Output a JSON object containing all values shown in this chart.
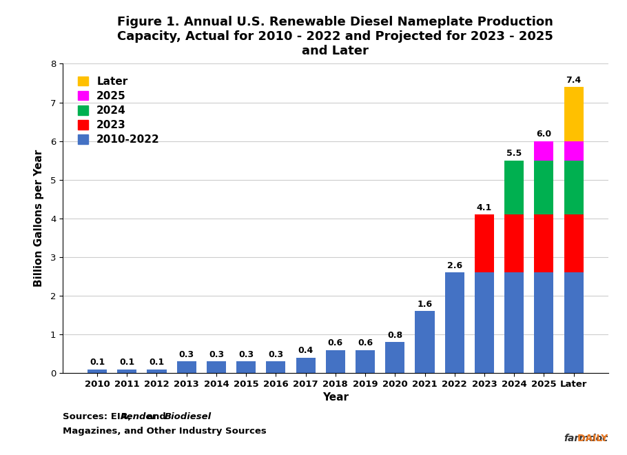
{
  "categories": [
    "2010",
    "2011",
    "2012",
    "2013",
    "2014",
    "2015",
    "2016",
    "2017",
    "2018",
    "2019",
    "2020",
    "2021",
    "2022",
    "2023",
    "2024",
    "2025",
    "Later"
  ],
  "base_2010_2022": [
    0.1,
    0.1,
    0.1,
    0.3,
    0.3,
    0.3,
    0.3,
    0.4,
    0.6,
    0.6,
    0.8,
    1.6,
    2.6,
    2.6,
    2.6,
    2.6,
    2.6
  ],
  "seg_2023": [
    0.0,
    0.0,
    0.0,
    0.0,
    0.0,
    0.0,
    0.0,
    0.0,
    0.0,
    0.0,
    0.0,
    0.0,
    0.0,
    1.5,
    1.5,
    1.5,
    1.5
  ],
  "seg_2024": [
    0.0,
    0.0,
    0.0,
    0.0,
    0.0,
    0.0,
    0.0,
    0.0,
    0.0,
    0.0,
    0.0,
    0.0,
    0.0,
    0.0,
    1.4,
    1.4,
    1.4
  ],
  "seg_2025": [
    0.0,
    0.0,
    0.0,
    0.0,
    0.0,
    0.0,
    0.0,
    0.0,
    0.0,
    0.0,
    0.0,
    0.0,
    0.0,
    0.0,
    0.0,
    0.5,
    0.5
  ],
  "seg_later": [
    0.0,
    0.0,
    0.0,
    0.0,
    0.0,
    0.0,
    0.0,
    0.0,
    0.0,
    0.0,
    0.0,
    0.0,
    0.0,
    0.0,
    0.0,
    0.0,
    1.4
  ],
  "totals": [
    0.1,
    0.1,
    0.1,
    0.3,
    0.3,
    0.3,
    0.3,
    0.4,
    0.6,
    0.6,
    0.8,
    1.6,
    2.6,
    4.1,
    5.5,
    6.0,
    7.4
  ],
  "color_base": "#4472C4",
  "color_2023": "#FF0000",
  "color_2024": "#00B050",
  "color_2025": "#FF00FF",
  "color_later": "#FFC000",
  "ylabel": "Billion Gallons per Year",
  "xlabel": "Year",
  "title": "Figure 1. Annual U.S. Renewable Diesel Nameplate Production\nCapacity, Actual for 2010 - 2022 and Projected for 2023 - 2025\nand Later",
  "ylim": [
    0,
    8
  ],
  "yticks": [
    0,
    1,
    2,
    3,
    4,
    5,
    6,
    7,
    8
  ],
  "watermark": "farmdocDAILY",
  "watermark_color_farm": "#333333",
  "watermark_color_daily": "#E87722",
  "legend_labels": [
    "Later",
    "2025",
    "2024",
    "2023",
    "2010-2022"
  ],
  "legend_colors": [
    "#FFC000",
    "#FF00FF",
    "#00B050",
    "#FF0000",
    "#4472C4"
  ],
  "bg_color": "#FFFFFF",
  "grid_color": "#CCCCCC"
}
